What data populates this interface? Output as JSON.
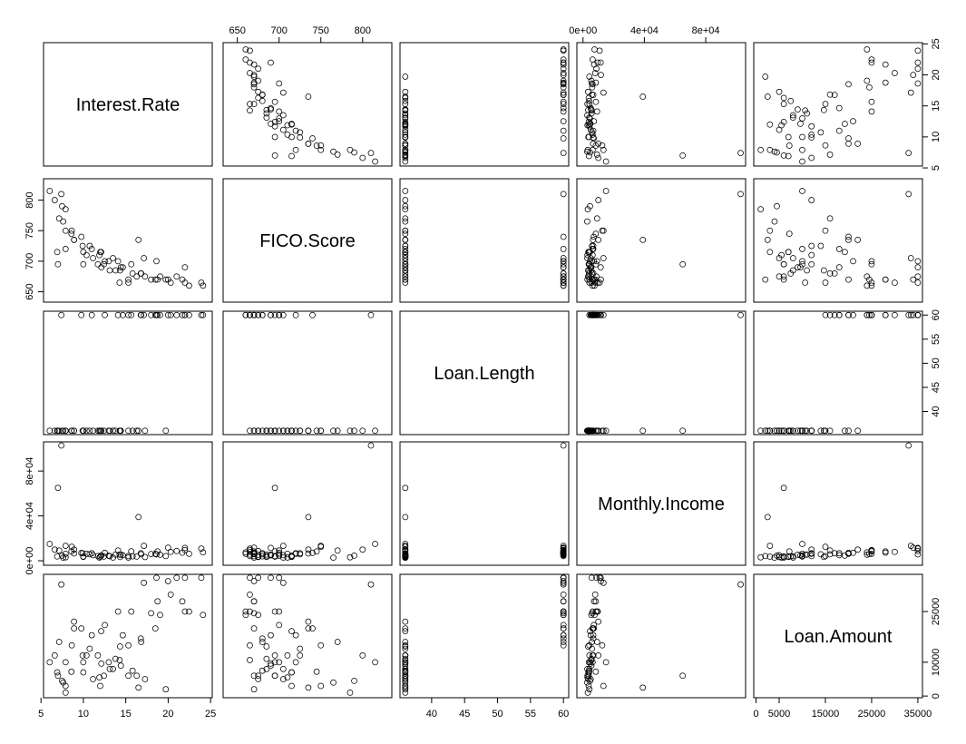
{
  "chart_data": {
    "type": "scatter",
    "kind": "scatterplot-matrix",
    "variables": [
      {
        "name": "Interest.Rate",
        "range": [
          5.3,
          25.2
        ],
        "ticks": [
          {
            "v": 5,
            "label": "5"
          },
          {
            "v": 10,
            "label": "10"
          },
          {
            "v": 15,
            "label": "15"
          },
          {
            "v": 20,
            "label": "20"
          },
          {
            "v": 25,
            "label": "25"
          }
        ]
      },
      {
        "name": "FICO.Score",
        "range": [
          633,
          835
        ],
        "ticks": [
          {
            "v": 650,
            "label": "650"
          },
          {
            "v": 700,
            "label": "700"
          },
          {
            "v": 750,
            "label": "750"
          },
          {
            "v": 800,
            "label": "800"
          }
        ]
      },
      {
        "name": "Loan.Length",
        "range": [
          35.2,
          60.8
        ],
        "ticks": [
          {
            "v": 40,
            "label": "40"
          },
          {
            "v": 45,
            "label": "45"
          },
          {
            "v": 50,
            "label": "50"
          },
          {
            "v": 55,
            "label": "55"
          },
          {
            "v": 60,
            "label": "60"
          }
        ]
      },
      {
        "name": "Monthly.Income",
        "range": [
          -4000,
          106000
        ],
        "ticks": [
          {
            "v": 0,
            "label": "0e+00"
          },
          {
            "v": 40000,
            "label": "4e+04"
          },
          {
            "v": 80000,
            "label": "8e+04"
          }
        ]
      },
      {
        "name": "Loan.Amount",
        "range": [
          -500,
          36000
        ],
        "ticks": [
          {
            "v": 0,
            "label": "0"
          },
          {
            "v": 5000,
            "label": "5000"
          },
          {
            "v": 10000,
            "label": "10000"
          },
          {
            "v": 15000,
            "label": "15000"
          },
          {
            "v": 25000,
            "label": "25000"
          },
          {
            "v": 35000,
            "label": "35000"
          }
        ]
      }
    ],
    "axis_labels": {
      "top": [
        {
          "var": 1,
          "ticks": [
            650,
            700,
            750,
            800
          ]
        },
        {
          "var": 3,
          "ticks": [
            0,
            40000,
            80000
          ]
        }
      ],
      "bottom": [
        {
          "var": 0,
          "ticks": [
            5,
            10,
            15,
            20,
            25
          ]
        },
        {
          "var": 2,
          "ticks": [
            40,
            45,
            50,
            55,
            60
          ]
        },
        {
          "var": 4,
          "ticks": [
            0,
            5000,
            15000,
            25000,
            35000
          ]
        }
      ],
      "left": [
        {
          "var": 1,
          "ticks": [
            650,
            700,
            750,
            800
          ]
        },
        {
          "var": 3,
          "ticks": [
            0,
            40000,
            80000
          ]
        }
      ],
      "right": [
        {
          "var": 0,
          "ticks": [
            5,
            10,
            15,
            20,
            25
          ]
        },
        {
          "var": 2,
          "ticks": [
            40,
            45,
            50,
            55,
            60
          ]
        },
        {
          "var": 4,
          "ticks": [
            0,
            10000,
            25000
          ]
        }
      ]
    },
    "observations": [
      [
        8.9,
        735,
        36,
        6541,
        20000
      ],
      [
        12.1,
        715,
        36,
        4583,
        19200
      ],
      [
        21.98,
        690,
        60,
        11500,
        35000
      ],
      [
        9.99,
        695,
        36,
        3833,
        10000
      ],
      [
        11.71,
        695,
        36,
        4195,
        12000
      ],
      [
        15.31,
        670,
        36,
        2917,
        6000
      ],
      [
        7.9,
        720,
        36,
        6250,
        10000
      ],
      [
        17.14,
        705,
        60,
        13333,
        33500
      ],
      [
        14.33,
        685,
        36,
        3355,
        14675
      ],
      [
        6.91,
        715,
        36,
        3917,
        7000
      ],
      [
        19.72,
        670,
        36,
        4167,
        2000
      ],
      [
        14.27,
        665,
        36,
        5500,
        10625
      ],
      [
        21.67,
        670,
        60,
        7250,
        28000
      ],
      [
        8.9,
        735,
        36,
        10000,
        22000
      ],
      [
        7.62,
        765,
        36,
        2750,
        4000
      ],
      [
        15.65,
        695,
        60,
        8417,
        25000
      ],
      [
        12.12,
        690,
        36,
        4833,
        9600
      ],
      [
        10.37,
        710,
        36,
        6250,
        12000
      ],
      [
        9.76,
        740,
        60,
        7000,
        20000
      ],
      [
        9.99,
        715,
        36,
        3500,
        7000
      ],
      [
        21.98,
        665,
        60,
        9583,
        25000
      ],
      [
        19.05,
        675,
        60,
        5417,
        24000
      ],
      [
        17.99,
        670,
        60,
        6000,
        24500
      ],
      [
        11.99,
        715,
        36,
        3667,
        3000
      ],
      [
        16.82,
        680,
        60,
        5833,
        16000
      ],
      [
        7.9,
        750,
        36,
        13333,
        3000
      ],
      [
        14.42,
        690,
        36,
        5417,
        9000
      ],
      [
        15.31,
        665,
        60,
        4167,
        15000
      ],
      [
        8.59,
        745,
        36,
        8333,
        7200
      ],
      [
        7.9,
        785,
        36,
        3125,
        1000
      ],
      [
        21.0,
        675,
        60,
        8750,
        35000
      ],
      [
        13.49,
        705,
        36,
        2833,
        8000
      ],
      [
        10.99,
        720,
        60,
        6667,
        18000
      ],
      [
        6.62,
        800,
        36,
        10000,
        12000
      ],
      [
        13.11,
        685,
        36,
        4083,
        8000
      ],
      [
        18.49,
        670,
        60,
        6250,
        20000
      ],
      [
        11.14,
        705,
        36,
        5000,
        5000
      ],
      [
        20.3,
        665,
        60,
        7917,
        30000
      ],
      [
        12.42,
        695,
        36,
        3750,
        6000
      ],
      [
        16.77,
        680,
        60,
        6667,
        17000
      ],
      [
        13.79,
        685,
        36,
        5500,
        11000
      ],
      [
        14.09,
        700,
        60,
        9167,
        25000
      ],
      [
        8.63,
        750,
        36,
        12500,
        15000
      ],
      [
        17.27,
        675,
        36,
        3333,
        5000
      ],
      [
        7.49,
        790,
        36,
        4583,
        4500
      ],
      [
        23.91,
        665,
        60,
        10833,
        35000
      ],
      [
        15.8,
        680,
        36,
        4000,
        7500
      ],
      [
        12.53,
        700,
        60,
        7083,
        21000
      ],
      [
        6.03,
        815,
        36,
        15000,
        10000
      ],
      [
        10.74,
        725,
        36,
        5833,
        14000
      ],
      [
        18.75,
        670,
        60,
        8333,
        28000
      ],
      [
        11.89,
        710,
        36,
        2917,
        5500
      ],
      [
        22.47,
        660,
        60,
        6250,
        25000
      ],
      [
        9.91,
        725,
        36,
        6667,
        12000
      ],
      [
        14.65,
        690,
        60,
        5000,
        18000
      ],
      [
        16.29,
        675,
        36,
        3750,
        6000
      ],
      [
        7.14,
        770,
        36,
        9167,
        16000
      ],
      [
        19.99,
        670,
        60,
        11667,
        34000
      ],
      [
        12.99,
        700,
        36,
        4500,
        10000
      ],
      [
        24.11,
        660,
        60,
        7500,
        24000
      ],
      [
        7.0,
        695,
        36,
        65000,
        6000
      ],
      [
        7.4,
        810,
        60,
        102750,
        33000
      ],
      [
        16.5,
        735,
        36,
        39000,
        2500
      ],
      [
        18.62,
        700,
        60,
        5667,
        35000
      ]
    ]
  }
}
